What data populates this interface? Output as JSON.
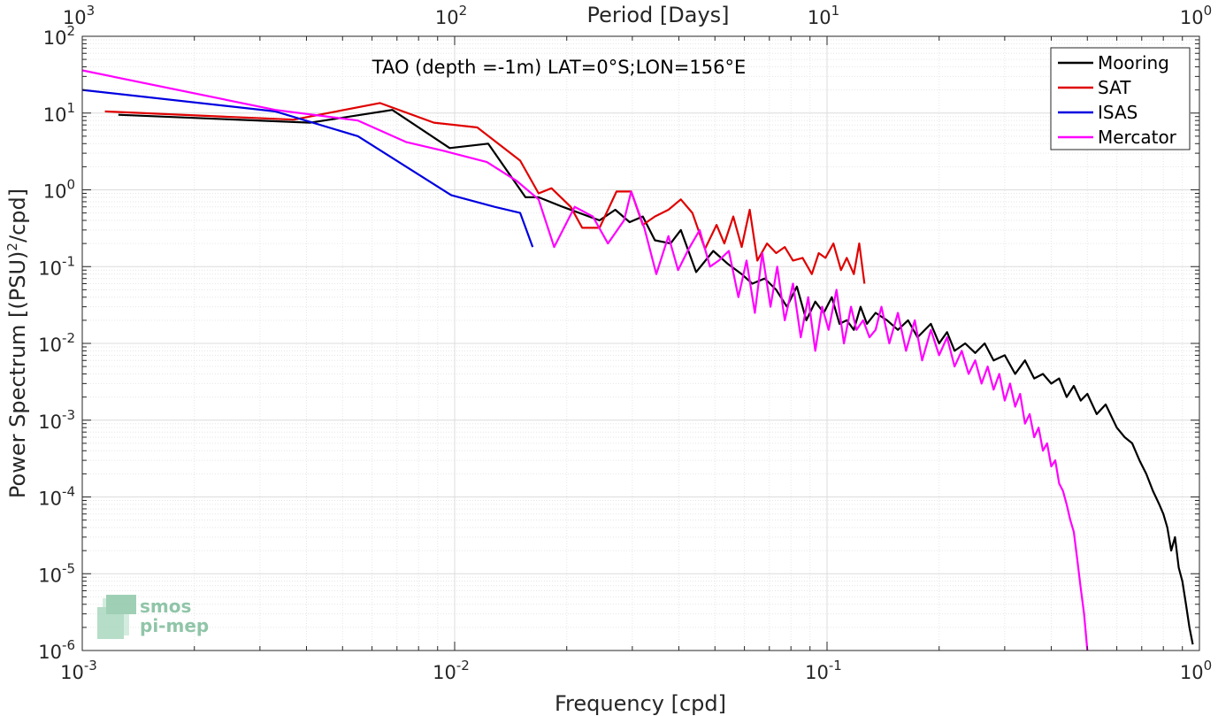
{
  "chart_data": {
    "type": "line",
    "title": "TAO (depth =-1m) LAT=0°S;LON=156°E",
    "xlabel": "Frequency [cpd]",
    "ylabel": "Power Spectrum [(PSU)²/cpd]",
    "ylabel_main": "Power Spectrum [(PSU)",
    "ylabel_sup": "2",
    "ylabel_tail": "/cpd]",
    "top_xlabel": "Period [Days]",
    "xscale": "log",
    "yscale": "log",
    "xlim": [
      0.001,
      1
    ],
    "ylim": [
      1e-06,
      100
    ],
    "grid": true,
    "legend_position": "top-right",
    "x_ticks": [
      {
        "value": 0.001,
        "base": "10",
        "exp": "-3"
      },
      {
        "value": 0.01,
        "base": "10",
        "exp": "-2"
      },
      {
        "value": 0.1,
        "base": "10",
        "exp": "-1"
      },
      {
        "value": 1,
        "base": "10",
        "exp": "0"
      }
    ],
    "top_x_ticks": [
      {
        "value": 0.001,
        "base": "10",
        "exp": "3"
      },
      {
        "value": 0.01,
        "base": "10",
        "exp": "2"
      },
      {
        "value": 0.1,
        "base": "10",
        "exp": "1"
      },
      {
        "value": 1,
        "base": "10",
        "exp": "0"
      }
    ],
    "y_ticks": [
      {
        "value": 100,
        "base": "10",
        "exp": "2"
      },
      {
        "value": 10,
        "base": "10",
        "exp": "1"
      },
      {
        "value": 1,
        "base": "10",
        "exp": "0"
      },
      {
        "value": 0.1,
        "base": "10",
        "exp": "-1"
      },
      {
        "value": 0.01,
        "base": "10",
        "exp": "-2"
      },
      {
        "value": 0.001,
        "base": "10",
        "exp": "-3"
      },
      {
        "value": 0.0001,
        "base": "10",
        "exp": "-4"
      },
      {
        "value": 1e-05,
        "base": "10",
        "exp": "-5"
      },
      {
        "value": 1e-06,
        "base": "10",
        "exp": "-6"
      }
    ],
    "series": [
      {
        "name": "Mooring",
        "color": "#000000",
        "x": [
          0.00125,
          0.0041,
          0.0068,
          0.0097,
          0.0123,
          0.0155,
          0.0168,
          0.0195,
          0.0245,
          0.027,
          0.0295,
          0.032,
          0.0345,
          0.038,
          0.0405,
          0.0445,
          0.0495,
          0.054,
          0.059,
          0.063,
          0.068,
          0.073,
          0.078,
          0.083,
          0.088,
          0.093,
          0.098,
          0.103,
          0.108,
          0.113,
          0.118,
          0.123,
          0.128,
          0.135,
          0.145,
          0.155,
          0.165,
          0.175,
          0.19,
          0.2,
          0.21,
          0.22,
          0.235,
          0.25,
          0.265,
          0.28,
          0.3,
          0.32,
          0.34,
          0.36,
          0.38,
          0.4,
          0.42,
          0.44,
          0.46,
          0.48,
          0.5,
          0.53,
          0.56,
          0.6,
          0.63,
          0.66,
          0.69,
          0.72,
          0.75,
          0.78,
          0.8,
          0.82,
          0.84,
          0.86,
          0.88,
          0.9,
          0.92,
          0.94,
          0.96
        ],
        "y": [
          9.5,
          7.5,
          11,
          3.5,
          4,
          0.8,
          0.8,
          0.6,
          0.4,
          0.55,
          0.38,
          0.45,
          0.22,
          0.2,
          0.3,
          0.085,
          0.16,
          0.11,
          0.08,
          0.06,
          0.07,
          0.05,
          0.03,
          0.055,
          0.02,
          0.035,
          0.025,
          0.04,
          0.018,
          0.02,
          0.015,
          0.03,
          0.018,
          0.025,
          0.02,
          0.015,
          0.02,
          0.012,
          0.018,
          0.01,
          0.014,
          0.008,
          0.01,
          0.0075,
          0.01,
          0.006,
          0.007,
          0.004,
          0.006,
          0.0035,
          0.004,
          0.003,
          0.0035,
          0.002,
          0.0028,
          0.0018,
          0.0022,
          0.0012,
          0.0016,
          0.0008,
          0.0006,
          0.0005,
          0.0003,
          0.0002,
          0.00012,
          8e-05,
          6e-05,
          4e-05,
          2e-05,
          3e-05,
          1.2e-05,
          8e-06,
          4e-06,
          2e-06,
          1.2e-06
        ]
      },
      {
        "name": "SAT",
        "color": "#e00000",
        "x": [
          0.00115,
          0.0037,
          0.0063,
          0.0088,
          0.0115,
          0.015,
          0.0168,
          0.0182,
          0.0205,
          0.022,
          0.0245,
          0.0272,
          0.0298,
          0.032,
          0.0345,
          0.0375,
          0.0405,
          0.0435,
          0.047,
          0.0505,
          0.053,
          0.056,
          0.059,
          0.062,
          0.065,
          0.069,
          0.073,
          0.077,
          0.081,
          0.086,
          0.091,
          0.095,
          0.099,
          0.104,
          0.109,
          0.113,
          0.118,
          0.122,
          0.126
        ],
        "y": [
          10.5,
          8.2,
          13.5,
          7.5,
          6.5,
          2.4,
          0.9,
          1.05,
          0.6,
          0.32,
          0.32,
          0.95,
          0.95,
          0.35,
          0.45,
          0.55,
          0.75,
          0.5,
          0.17,
          0.35,
          0.2,
          0.45,
          0.18,
          0.55,
          0.12,
          0.2,
          0.15,
          0.18,
          0.12,
          0.13,
          0.08,
          0.15,
          0.13,
          0.2,
          0.09,
          0.13,
          0.08,
          0.2,
          0.06
        ]
      },
      {
        "name": "ISAS",
        "color": "#0000e0",
        "x": [
          0.001,
          0.0033,
          0.0055,
          0.0098,
          0.0128,
          0.015,
          0.0162
        ],
        "y": [
          20,
          10.5,
          5,
          0.85,
          0.6,
          0.5,
          0.18
        ]
      },
      {
        "name": "Mercator",
        "color": "#ff00ff",
        "x": [
          0.001,
          0.0033,
          0.0055,
          0.0074,
          0.0094,
          0.0122,
          0.0147,
          0.0168,
          0.0185,
          0.021,
          0.0235,
          0.0258,
          0.0285,
          0.0298,
          0.0323,
          0.0348,
          0.0375,
          0.0398,
          0.0425,
          0.0455,
          0.0485,
          0.0512,
          0.0545,
          0.0578,
          0.0608,
          0.064,
          0.067,
          0.0705,
          0.0735,
          0.077,
          0.081,
          0.085,
          0.089,
          0.093,
          0.097,
          0.101,
          0.106,
          0.111,
          0.116,
          0.12,
          0.125,
          0.13,
          0.135,
          0.14,
          0.147,
          0.155,
          0.163,
          0.172,
          0.18,
          0.19,
          0.2,
          0.21,
          0.22,
          0.23,
          0.24,
          0.25,
          0.26,
          0.27,
          0.28,
          0.29,
          0.3,
          0.31,
          0.32,
          0.33,
          0.34,
          0.35,
          0.36,
          0.37,
          0.38,
          0.39,
          0.4,
          0.41,
          0.42,
          0.43,
          0.44,
          0.45,
          0.46,
          0.47,
          0.48,
          0.49,
          0.5
        ],
        "y": [
          36,
          11,
          8,
          4.2,
          3.2,
          2.3,
          1.3,
          0.75,
          0.18,
          0.6,
          0.45,
          0.2,
          0.4,
          0.95,
          0.32,
          0.08,
          0.25,
          0.09,
          0.17,
          0.3,
          0.1,
          0.12,
          0.16,
          0.04,
          0.12,
          0.025,
          0.15,
          0.03,
          0.1,
          0.02,
          0.06,
          0.012,
          0.04,
          0.008,
          0.03,
          0.015,
          0.05,
          0.01,
          0.03,
          0.015,
          0.02,
          0.012,
          0.015,
          0.03,
          0.01,
          0.025,
          0.008,
          0.02,
          0.006,
          0.015,
          0.007,
          0.012,
          0.005,
          0.008,
          0.004,
          0.006,
          0.003,
          0.005,
          0.0025,
          0.004,
          0.0018,
          0.003,
          0.0015,
          0.0022,
          0.0009,
          0.0012,
          0.0006,
          0.0008,
          0.0004,
          0.0005,
          0.00025,
          0.0003,
          0.00015,
          0.00012,
          8e-05,
          5e-05,
          3.5e-05,
          1.5e-05,
          6.5e-06,
          3e-06,
          1e-06
        ]
      }
    ]
  },
  "logo": {
    "line1": "smos",
    "line2": "pi-mep"
  }
}
